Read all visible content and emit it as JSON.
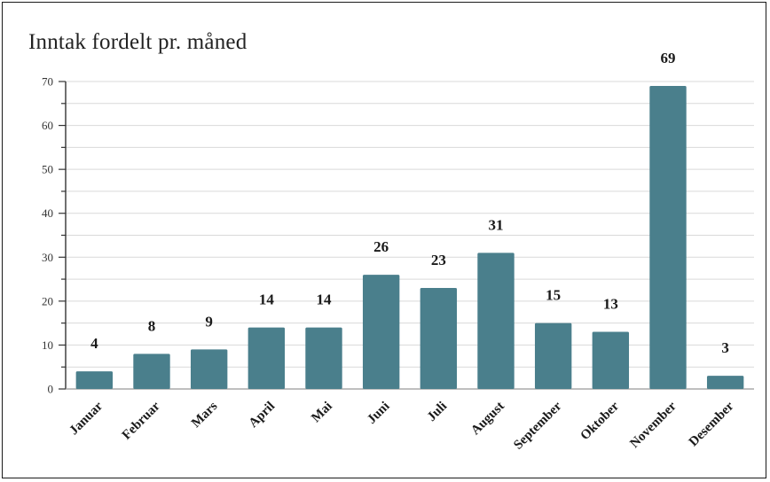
{
  "chart_data": {
    "type": "bar",
    "title": "Inntak fordelt pr. måned",
    "categories": [
      "Januar",
      "Februar",
      "Mars",
      "April",
      "Mai",
      "Juni",
      "Juli",
      "August",
      "September",
      "Oktober",
      "November",
      "Desember"
    ],
    "values": [
      4,
      8,
      9,
      14,
      14,
      26,
      23,
      31,
      15,
      13,
      69,
      3
    ],
    "xlabel": "",
    "ylabel": "",
    "ylim": [
      0,
      70
    ],
    "yticks": [
      0,
      10,
      20,
      30,
      40,
      50,
      60,
      70
    ],
    "grid": true,
    "legend": "none",
    "bar_color": "#4a7f8c",
    "grid_color": "#d9d9d9"
  }
}
